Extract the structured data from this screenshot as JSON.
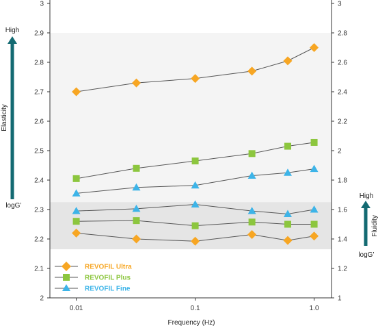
{
  "chart_data": {
    "type": "line",
    "xlabel": "Frequency (Hz)",
    "x_scale": "log",
    "x_ticks": [
      0.01,
      0.1,
      1.0
    ],
    "x_tick_labels": [
      "0.01",
      "0.1",
      "1.0"
    ],
    "xlim": [
      0.006,
      1.4
    ],
    "left_axis": {
      "ylim": [
        2.0,
        3.0
      ],
      "ticks": [
        2.0,
        2.1,
        2.2,
        2.3,
        2.4,
        2.5,
        2.6,
        2.7,
        2.8,
        2.9,
        3.0
      ],
      "tick_labels": [
        "2",
        "2.1",
        "2.2",
        "2.3",
        "2.4",
        "2.5",
        "2.6",
        "2.7",
        "2.8",
        "2.9",
        "3"
      ],
      "indicator": {
        "top": "High",
        "label": "Elasticity",
        "bottom": "logG’"
      }
    },
    "right_axis": {
      "ylim": [
        1.0,
        3.0
      ],
      "ticks": [
        1.0,
        1.2,
        1.4,
        1.6,
        1.8,
        2.0,
        2.2,
        2.4,
        2.6,
        2.8,
        3.0
      ],
      "tick_labels": [
        "1",
        "1.2",
        "1.4",
        "1.6",
        "1.8",
        "2",
        "2.2",
        "2.4",
        "2.6",
        "2.8",
        "3"
      ],
      "indicator": {
        "top": "High",
        "label": "Fluidity",
        "bottom": "logG’"
      }
    },
    "bands": [
      {
        "y_range": [
          2.3,
          2.9
        ],
        "color": "#f4f4f4"
      },
      {
        "y_range": [
          2.165,
          2.325
        ],
        "color": "#e5e5e5"
      }
    ],
    "x": [
      0.01,
      0.032,
      0.1,
      0.3,
      0.6,
      1.0
    ],
    "elasticity_series": [
      {
        "name": "REVOFIL Ultra",
        "marker": "diamond",
        "color": "#f7a623",
        "values": [
          2.7,
          2.73,
          2.745,
          2.77,
          2.805,
          2.85
        ]
      },
      {
        "name": "REVOFIL Plus",
        "marker": "square",
        "color": "#8cc63e",
        "values": [
          2.405,
          2.44,
          2.465,
          2.49,
          2.515,
          2.528
        ]
      },
      {
        "name": "REVOFIL Fine",
        "marker": "triangle",
        "color": "#3db4e8",
        "values": [
          2.355,
          2.375,
          2.382,
          2.415,
          2.425,
          2.438
        ]
      }
    ],
    "fluidity_series": [
      {
        "name": "REVOFIL Fine",
        "marker": "triangle",
        "color": "#3db4e8",
        "values": [
          1.59,
          1.605,
          1.635,
          1.59,
          1.57,
          1.6
        ]
      },
      {
        "name": "REVOFIL Plus",
        "marker": "square",
        "color": "#8cc63e",
        "values": [
          1.52,
          1.525,
          1.49,
          1.515,
          1.5,
          1.5
        ]
      },
      {
        "name": "REVOFIL Ultra",
        "marker": "diamond",
        "color": "#f7a623",
        "values": [
          1.44,
          1.4,
          1.385,
          1.43,
          1.39,
          1.42
        ]
      }
    ],
    "legend": {
      "position": "bottom-left",
      "entries": [
        {
          "label": "REVOFIL Ultra",
          "marker": "diamond",
          "color": "#f7a623"
        },
        {
          "label": "REVOFIL Plus",
          "marker": "square",
          "color": "#8cc63e"
        },
        {
          "label": "REVOFIL Fine",
          "marker": "triangle",
          "color": "#3db4e8"
        }
      ]
    },
    "colors": {
      "line": "#555555",
      "axis": "#333333",
      "arrow": "#136a72"
    }
  }
}
